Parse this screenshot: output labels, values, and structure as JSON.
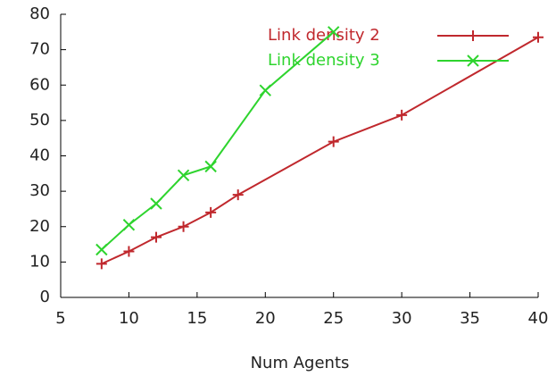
{
  "chart_data": {
    "type": "line",
    "xlabel": "Num Agents",
    "xlim": [
      5,
      40
    ],
    "xticks": [
      5,
      10,
      15,
      20,
      25,
      30,
      35,
      40
    ],
    "ylim": [
      0,
      80
    ],
    "yticks": [
      0,
      10,
      20,
      30,
      40,
      50,
      60,
      70,
      80
    ],
    "legend": "top-right",
    "series": [
      {
        "name": "Link density 2",
        "color": "#c0282d",
        "marker": "plus",
        "x": [
          8,
          10,
          12,
          14,
          16,
          18,
          25,
          30,
          40
        ],
        "values": [
          9.5,
          13,
          17,
          20,
          24,
          29,
          44,
          51.5,
          73.5
        ]
      },
      {
        "name": "Link density 3",
        "color": "#2ed42e",
        "marker": "cross",
        "x": [
          8,
          10,
          12,
          14,
          16,
          20,
          25
        ],
        "values": [
          13.5,
          20.5,
          26.5,
          34.5,
          37,
          58.5,
          75
        ]
      }
    ]
  }
}
